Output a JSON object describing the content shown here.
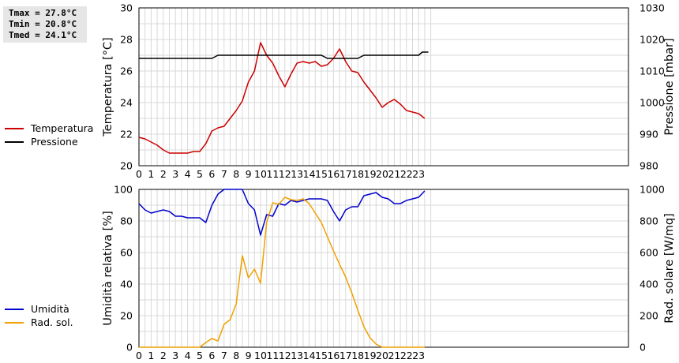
{
  "stats": {
    "tmax": "Tmax = 27.8°C",
    "tmin": "Tmin = 20.8°C",
    "tmed": "Tmed = 24.1°C"
  },
  "colors": {
    "temperatura": "#cc0000",
    "pressione": "#000000",
    "umidita": "#0000cc",
    "radsol": "#f0a000",
    "grid": "#d8d8d8"
  },
  "legend_top": [
    {
      "label": "Temperatura",
      "color": "#cc0000"
    },
    {
      "label": "Pressione",
      "color": "#000000"
    }
  ],
  "legend_bottom": [
    {
      "label": "Umidità",
      "color": "#0000cc"
    },
    {
      "label": "Rad. sol.",
      "color": "#f0a000"
    }
  ],
  "chart_data": [
    {
      "type": "line",
      "xlabel": "",
      "xlim": [
        0,
        24
      ],
      "xticks": [
        0,
        1,
        2,
        3,
        4,
        5,
        6,
        7,
        8,
        9,
        10,
        11,
        12,
        13,
        14,
        15,
        16,
        17,
        18,
        19,
        20,
        21,
        22,
        23
      ],
      "ylabel": "Temperatura [°C]",
      "ylim": [
        20,
        30
      ],
      "yticks": [
        20,
        22,
        24,
        26,
        28,
        30
      ],
      "y2label": "Pressione [mbar]",
      "y2lim": [
        980,
        1030
      ],
      "y2ticks": [
        980,
        990,
        1000,
        1010,
        1020,
        1030
      ],
      "grid": true,
      "legend": "left",
      "series": [
        {
          "name": "Temperatura",
          "axis": "left",
          "color": "#cc0000",
          "x": [
            0,
            0.5,
            1,
            1.5,
            2,
            2.5,
            3,
            3.5,
            4,
            4.5,
            5,
            5.5,
            6,
            6.5,
            7,
            7.5,
            8,
            8.5,
            9,
            9.5,
            10,
            10.5,
            11,
            11.5,
            12,
            12.5,
            13,
            13.5,
            14,
            14.5,
            15,
            15.5,
            16,
            16.5,
            17,
            17.5,
            18,
            18.5,
            19,
            19.5,
            20,
            20.5,
            21,
            21.5,
            22,
            22.5,
            23,
            23.5
          ],
          "y": [
            21.8,
            21.7,
            21.5,
            21.3,
            21.0,
            20.8,
            20.8,
            20.8,
            20.8,
            20.9,
            20.9,
            21.4,
            22.2,
            22.4,
            22.5,
            23.0,
            23.5,
            24.1,
            25.3,
            26.0,
            27.8,
            27.0,
            26.5,
            25.7,
            25.0,
            25.8,
            26.5,
            26.6,
            26.5,
            26.6,
            26.3,
            26.4,
            26.8,
            27.4,
            26.6,
            26.0,
            25.9,
            25.3,
            24.8,
            24.3,
            23.7,
            24.0,
            24.2,
            23.9,
            23.5,
            23.4,
            23.3,
            23.0
          ]
        },
        {
          "name": "Pressione",
          "axis": "right",
          "color": "#000000",
          "x": [
            0,
            6,
            6.5,
            15,
            15.5,
            18,
            18.5,
            23,
            23.3,
            23.8
          ],
          "y": [
            1014,
            1014,
            1015,
            1015,
            1014,
            1014,
            1015,
            1015,
            1016,
            1016
          ]
        }
      ]
    },
    {
      "type": "line",
      "xlabel": "",
      "xlim": [
        0,
        24
      ],
      "xticks": [
        0,
        1,
        2,
        3,
        4,
        5,
        6,
        7,
        8,
        9,
        10,
        11,
        12,
        13,
        14,
        15,
        16,
        17,
        18,
        19,
        20,
        21,
        22,
        23
      ],
      "ylabel": "Umidità relativa [%]",
      "ylim": [
        0,
        100
      ],
      "yticks": [
        0,
        20,
        40,
        60,
        80,
        100
      ],
      "y2label": "Rad. solare [W/mq]",
      "y2lim": [
        0,
        1000
      ],
      "y2ticks": [
        0,
        200,
        400,
        600,
        800,
        1000
      ],
      "grid": true,
      "legend": "left",
      "series": [
        {
          "name": "Umidità",
          "axis": "left",
          "color": "#0000cc",
          "x": [
            0,
            0.5,
            1,
            1.5,
            2,
            2.5,
            3,
            3.5,
            4,
            4.5,
            5,
            5.5,
            6,
            6.5,
            7,
            7.5,
            8,
            8.5,
            9,
            9.5,
            10,
            10.5,
            11,
            11.5,
            12,
            12.5,
            13,
            13.5,
            14,
            14.5,
            15,
            15.5,
            16,
            16.5,
            17,
            17.5,
            18,
            18.5,
            19,
            19.5,
            20,
            20.5,
            21,
            21.5,
            22,
            22.5,
            23,
            23.5
          ],
          "y": [
            91,
            87,
            85,
            86,
            87,
            86,
            83,
            83,
            82,
            82,
            82,
            79,
            90,
            97,
            100,
            100,
            100,
            100,
            91,
            87,
            71,
            84,
            83,
            91,
            90,
            93,
            92,
            93,
            94,
            94,
            94,
            93,
            86,
            80,
            87,
            89,
            89,
            96,
            97,
            98,
            95,
            94,
            91,
            91,
            93,
            94,
            95,
            99
          ]
        },
        {
          "name": "Rad. sol.",
          "axis": "right",
          "color": "#f0a000",
          "x": [
            0,
            0.5,
            1,
            1.5,
            2,
            2.5,
            3,
            3.5,
            4,
            4.5,
            5,
            5.5,
            6,
            6.5,
            7,
            7.5,
            8,
            8.5,
            9,
            9.5,
            10,
            10.5,
            11,
            11.5,
            12,
            12.5,
            13,
            13.5,
            14,
            14.5,
            15,
            15.5,
            16,
            16.5,
            17,
            17.5,
            18,
            18.5,
            19,
            19.5,
            20,
            20.5,
            21,
            21.5,
            22,
            22.5,
            23,
            23.5
          ],
          "y": [
            0,
            0,
            0,
            0,
            0,
            0,
            0,
            0,
            0,
            0,
            0,
            30,
            55,
            40,
            145,
            175,
            275,
            580,
            440,
            495,
            405,
            790,
            915,
            905,
            950,
            935,
            930,
            940,
            910,
            850,
            790,
            700,
            610,
            525,
            445,
            345,
            235,
            130,
            60,
            20,
            0,
            0,
            0,
            0,
            0,
            0,
            0,
            0
          ]
        }
      ]
    }
  ]
}
